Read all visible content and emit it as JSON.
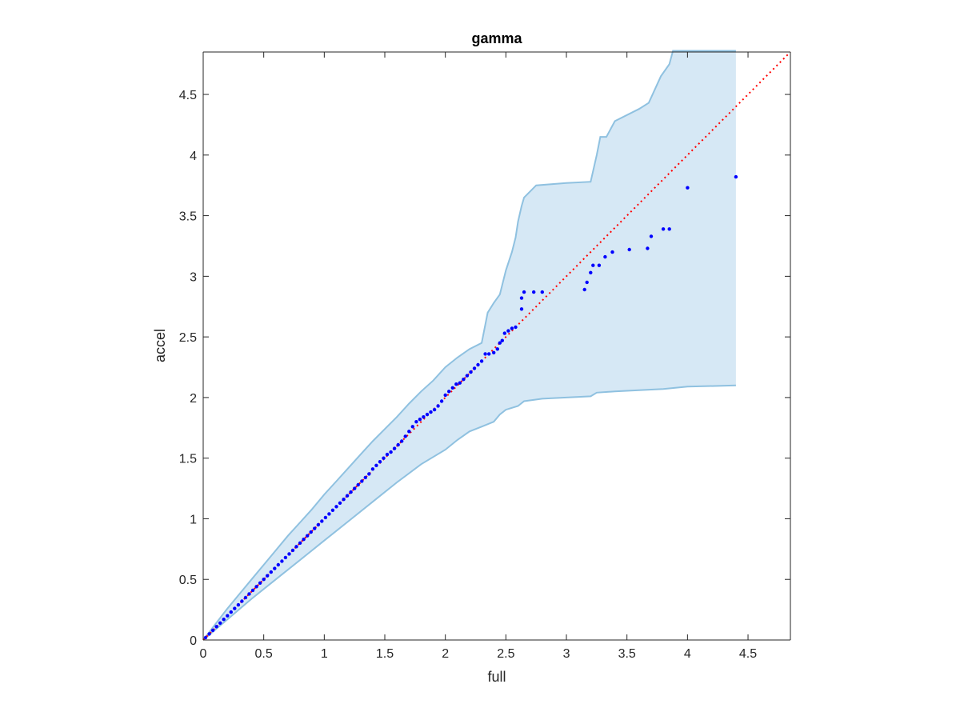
{
  "chart_data": {
    "type": "scatter",
    "title": "gamma",
    "xlabel": "full",
    "ylabel": "accel",
    "xlim": [
      0,
      4.85
    ],
    "ylim": [
      0,
      4.85
    ],
    "xticks": [
      "0",
      "0.5",
      "1",
      "1.5",
      "2",
      "2.5",
      "3",
      "3.5",
      "4",
      "4.5"
    ],
    "yticks": [
      "0",
      "0.5",
      "1",
      "1.5",
      "2",
      "2.5",
      "3",
      "3.5",
      "4",
      "4.5"
    ],
    "grid": false,
    "colors": {
      "points": "#0000ff",
      "reference_line": "#ff0000",
      "band_fill": "#d6e8f5",
      "band_edge": "#8fc1e0",
      "axes": "#262626"
    },
    "reference_line": {
      "x": [
        0,
        4.85
      ],
      "y": [
        0,
        4.85
      ],
      "style": "dotted"
    },
    "band": {
      "upper": [
        [
          0,
          0
        ],
        [
          0.1,
          0.13
        ],
        [
          0.2,
          0.26
        ],
        [
          0.3,
          0.38
        ],
        [
          0.4,
          0.5
        ],
        [
          0.5,
          0.62
        ],
        [
          0.6,
          0.74
        ],
        [
          0.7,
          0.86
        ],
        [
          0.8,
          0.97
        ],
        [
          0.9,
          1.08
        ],
        [
          1.0,
          1.2
        ],
        [
          1.1,
          1.31
        ],
        [
          1.2,
          1.42
        ],
        [
          1.3,
          1.53
        ],
        [
          1.4,
          1.64
        ],
        [
          1.5,
          1.74
        ],
        [
          1.6,
          1.84
        ],
        [
          1.7,
          1.95
        ],
        [
          1.8,
          2.05
        ],
        [
          1.9,
          2.14
        ],
        [
          2.0,
          2.25
        ],
        [
          2.1,
          2.33
        ],
        [
          2.2,
          2.4
        ],
        [
          2.3,
          2.45
        ],
        [
          2.35,
          2.7
        ],
        [
          2.4,
          2.78
        ],
        [
          2.45,
          2.85
        ],
        [
          2.5,
          3.05
        ],
        [
          2.55,
          3.2
        ],
        [
          2.58,
          3.32
        ],
        [
          2.6,
          3.45
        ],
        [
          2.63,
          3.58
        ],
        [
          2.65,
          3.65
        ],
        [
          2.75,
          3.75
        ],
        [
          3.0,
          3.77
        ],
        [
          3.2,
          3.78
        ],
        [
          3.25,
          4.0
        ],
        [
          3.28,
          4.15
        ],
        [
          3.33,
          4.15
        ],
        [
          3.4,
          4.28
        ],
        [
          3.6,
          4.38
        ],
        [
          3.68,
          4.43
        ],
        [
          3.78,
          4.65
        ],
        [
          3.85,
          4.75
        ],
        [
          3.88,
          4.86
        ],
        [
          4.4,
          4.86
        ]
      ],
      "lower": [
        [
          0,
          0
        ],
        [
          0.2,
          0.17
        ],
        [
          0.4,
          0.34
        ],
        [
          0.6,
          0.5
        ],
        [
          0.8,
          0.66
        ],
        [
          1.0,
          0.82
        ],
        [
          1.2,
          0.98
        ],
        [
          1.4,
          1.14
        ],
        [
          1.6,
          1.3
        ],
        [
          1.8,
          1.45
        ],
        [
          2.0,
          1.57
        ],
        [
          2.1,
          1.65
        ],
        [
          2.2,
          1.72
        ],
        [
          2.3,
          1.76
        ],
        [
          2.4,
          1.8
        ],
        [
          2.45,
          1.86
        ],
        [
          2.5,
          1.9
        ],
        [
          2.6,
          1.93
        ],
        [
          2.65,
          1.97
        ],
        [
          2.8,
          1.99
        ],
        [
          3.0,
          2.0
        ],
        [
          3.2,
          2.01
        ],
        [
          3.25,
          2.04
        ],
        [
          3.4,
          2.05
        ],
        [
          3.6,
          2.06
        ],
        [
          3.8,
          2.07
        ],
        [
          3.9,
          2.08
        ],
        [
          4.0,
          2.09
        ],
        [
          4.4,
          2.1
        ]
      ]
    },
    "points": {
      "x": [
        0.02,
        0.05,
        0.08,
        0.11,
        0.14,
        0.17,
        0.2,
        0.23,
        0.26,
        0.29,
        0.32,
        0.35,
        0.38,
        0.41,
        0.44,
        0.47,
        0.5,
        0.53,
        0.56,
        0.59,
        0.62,
        0.65,
        0.68,
        0.71,
        0.74,
        0.77,
        0.8,
        0.83,
        0.86,
        0.89,
        0.92,
        0.95,
        0.98,
        1.01,
        1.04,
        1.07,
        1.1,
        1.13,
        1.16,
        1.19,
        1.22,
        1.25,
        1.28,
        1.31,
        1.34,
        1.37,
        1.4,
        1.43,
        1.46,
        1.49,
        1.52,
        1.55,
        1.58,
        1.61,
        1.64,
        1.67,
        1.7,
        1.73,
        1.76,
        1.79,
        1.82,
        1.85,
        1.88,
        1.91,
        1.94,
        1.97,
        2.0,
        2.03,
        2.06,
        2.09,
        2.12,
        2.15,
        2.18,
        2.21,
        2.24,
        2.27,
        2.3,
        2.33,
        2.36,
        2.4,
        2.43,
        2.45,
        2.47,
        2.49,
        2.52,
        2.55,
        2.58,
        2.63,
        2.63,
        2.65,
        2.73,
        2.8,
        3.15,
        3.17,
        3.2,
        3.22,
        3.27,
        3.32,
        3.38,
        3.52,
        3.67,
        3.7,
        3.8,
        3.85,
        4.0,
        4.4
      ],
      "y": [
        0.02,
        0.05,
        0.08,
        0.11,
        0.14,
        0.17,
        0.2,
        0.23,
        0.26,
        0.29,
        0.32,
        0.35,
        0.38,
        0.41,
        0.44,
        0.47,
        0.5,
        0.53,
        0.56,
        0.59,
        0.62,
        0.65,
        0.68,
        0.71,
        0.74,
        0.77,
        0.8,
        0.83,
        0.86,
        0.89,
        0.92,
        0.95,
        0.98,
        1.01,
        1.04,
        1.07,
        1.1,
        1.13,
        1.16,
        1.19,
        1.22,
        1.25,
        1.28,
        1.31,
        1.34,
        1.37,
        1.41,
        1.44,
        1.47,
        1.5,
        1.53,
        1.55,
        1.58,
        1.61,
        1.64,
        1.68,
        1.72,
        1.76,
        1.8,
        1.82,
        1.84,
        1.86,
        1.88,
        1.9,
        1.93,
        1.97,
        2.02,
        2.05,
        2.08,
        2.11,
        2.12,
        2.15,
        2.18,
        2.21,
        2.24,
        2.27,
        2.3,
        2.36,
        2.36,
        2.37,
        2.4,
        2.45,
        2.47,
        2.53,
        2.55,
        2.57,
        2.58,
        2.73,
        2.82,
        2.87,
        2.87,
        2.87,
        2.89,
        2.95,
        3.03,
        3.09,
        3.09,
        3.16,
        3.2,
        3.22,
        3.23,
        3.33,
        3.39,
        3.39,
        3.73,
        3.82
      ]
    }
  }
}
